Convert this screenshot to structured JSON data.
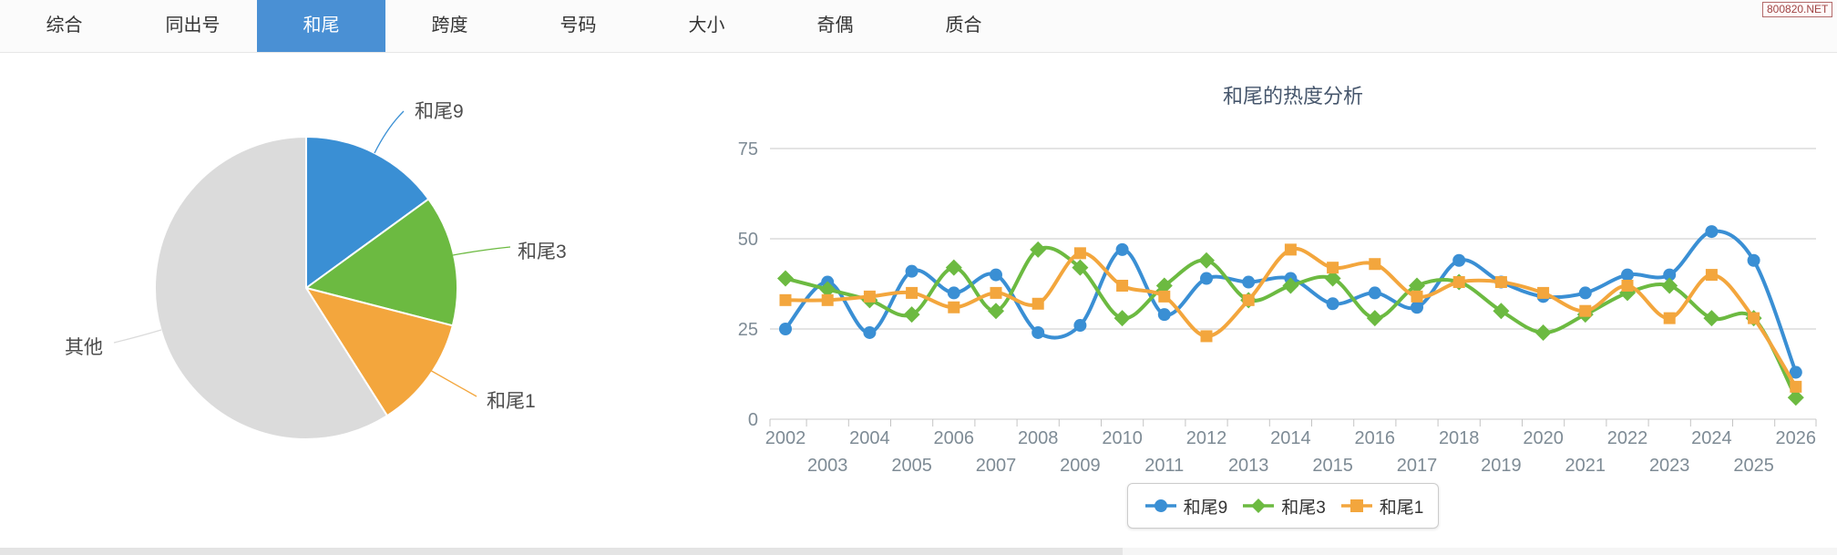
{
  "tabs": [
    {
      "label": "综合",
      "active": false
    },
    {
      "label": "同出号",
      "active": false
    },
    {
      "label": "和尾",
      "active": true
    },
    {
      "label": "跨度",
      "active": false
    },
    {
      "label": "号码",
      "active": false
    },
    {
      "label": "大小",
      "active": false
    },
    {
      "label": "奇偶",
      "active": false
    },
    {
      "label": "质合",
      "active": false
    }
  ],
  "watermark": {
    "text": "800820.NET"
  },
  "colors": {
    "tab_active": "#4A90D4",
    "series_blue": "#3A8FD4",
    "series_green": "#6CBA41",
    "series_orange": "#F3A63D",
    "pie_other_gray": "#DBDBDB"
  },
  "chart_data": [
    {
      "type": "pie",
      "labels": [
        "和尾9",
        "和尾3",
        "和尾1",
        "其他"
      ],
      "values_percent": [
        15,
        14,
        12,
        59
      ],
      "colors": [
        "#3A8FD4",
        "#6CBA41",
        "#F3A63D",
        "#DBDBDB"
      ],
      "start_angle": "12-oclock-clockwise",
      "legend": "none"
    },
    {
      "type": "line",
      "title": "和尾的热度分析",
      "x": [
        2002,
        2003,
        2004,
        2005,
        2006,
        2007,
        2008,
        2009,
        2010,
        2011,
        2012,
        2013,
        2014,
        2015,
        2016,
        2017,
        2018,
        2019,
        2020,
        2021,
        2022,
        2023,
        2024,
        2025,
        2026
      ],
      "ylim": [
        0,
        75
      ],
      "yticks": [
        0,
        25,
        50,
        75
      ],
      "grid": true,
      "legend_position": "bottom",
      "smooth": true,
      "series": [
        {
          "name": "和尾9",
          "color": "#3A8FD4",
          "marker": "circle",
          "values": [
            25,
            38,
            24,
            41,
            35,
            40,
            24,
            26,
            47,
            29,
            39,
            38,
            39,
            32,
            35,
            31,
            44,
            38,
            34,
            35,
            40,
            40,
            52,
            44,
            13
          ]
        },
        {
          "name": "和尾3",
          "color": "#6CBA41",
          "marker": "diamond",
          "values": [
            39,
            36,
            33,
            29,
            42,
            30,
            47,
            42,
            28,
            37,
            44,
            33,
            37,
            39,
            28,
            37,
            38,
            30,
            24,
            29,
            35,
            37,
            28,
            28,
            6
          ]
        },
        {
          "name": "和尾1",
          "color": "#F3A63D",
          "marker": "square",
          "values": [
            33,
            33,
            34,
            35,
            31,
            35,
            32,
            46,
            37,
            34,
            23,
            33,
            47,
            42,
            43,
            34,
            38,
            38,
            35,
            30,
            37,
            28,
            40,
            28,
            9
          ]
        }
      ]
    }
  ]
}
